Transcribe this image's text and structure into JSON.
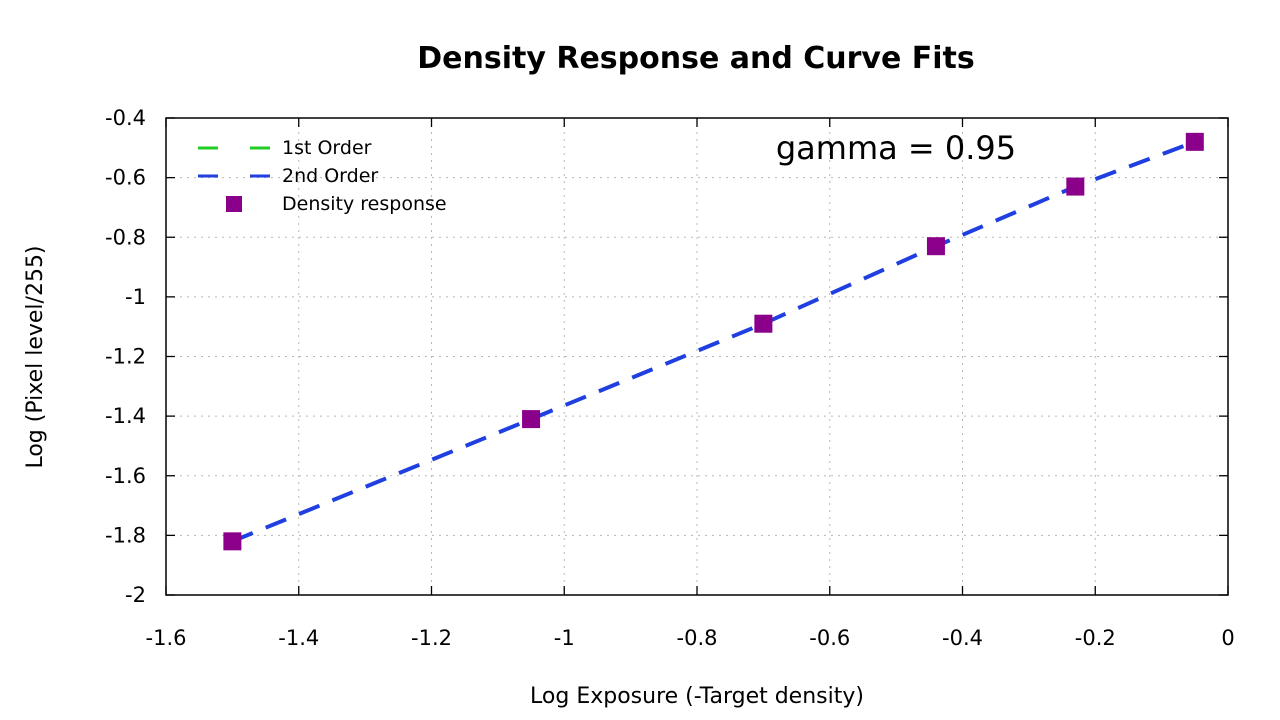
{
  "chart_data": {
    "type": "scatter",
    "title": "Density Response and Curve Fits",
    "xlabel": "Log Exposure (-Target density)",
    "ylabel": "Log (Pixel level/255)",
    "xlim": [
      -1.6,
      0
    ],
    "ylim": [
      -2,
      -0.4
    ],
    "x_ticks": [
      "-1.6",
      "-1.4",
      "-1.2",
      "-1",
      "-0.8",
      "-0.6",
      "-0.4",
      "-0.2",
      "0"
    ],
    "y_ticks": [
      "-0.4",
      "-0.6",
      "-0.8",
      "-1",
      "-1.2",
      "-1.4",
      "-1.6",
      "-1.8",
      "-2"
    ],
    "grid": true,
    "legend_position": "top-left",
    "annotation": "gamma = 0.95",
    "series": [
      {
        "name": "1st Order",
        "kind": "line",
        "style": "dashed",
        "color": "#22cc22",
        "x": [],
        "y": []
      },
      {
        "name": "2nd Order",
        "kind": "line",
        "style": "dashed",
        "color": "#1f3fe0",
        "x": [
          -1.5,
          -1.05,
          -0.7,
          -0.44,
          -0.23,
          -0.05
        ],
        "y": [
          -1.82,
          -1.41,
          -1.09,
          -0.83,
          -0.63,
          -0.48
        ]
      },
      {
        "name": "Density response",
        "kind": "scatter",
        "marker": "square",
        "color": "#8b008b",
        "x": [
          -1.5,
          -1.05,
          -0.7,
          -0.44,
          -0.23,
          -0.05
        ],
        "y": [
          -1.82,
          -1.41,
          -1.09,
          -0.83,
          -0.63,
          -0.48
        ]
      }
    ]
  }
}
